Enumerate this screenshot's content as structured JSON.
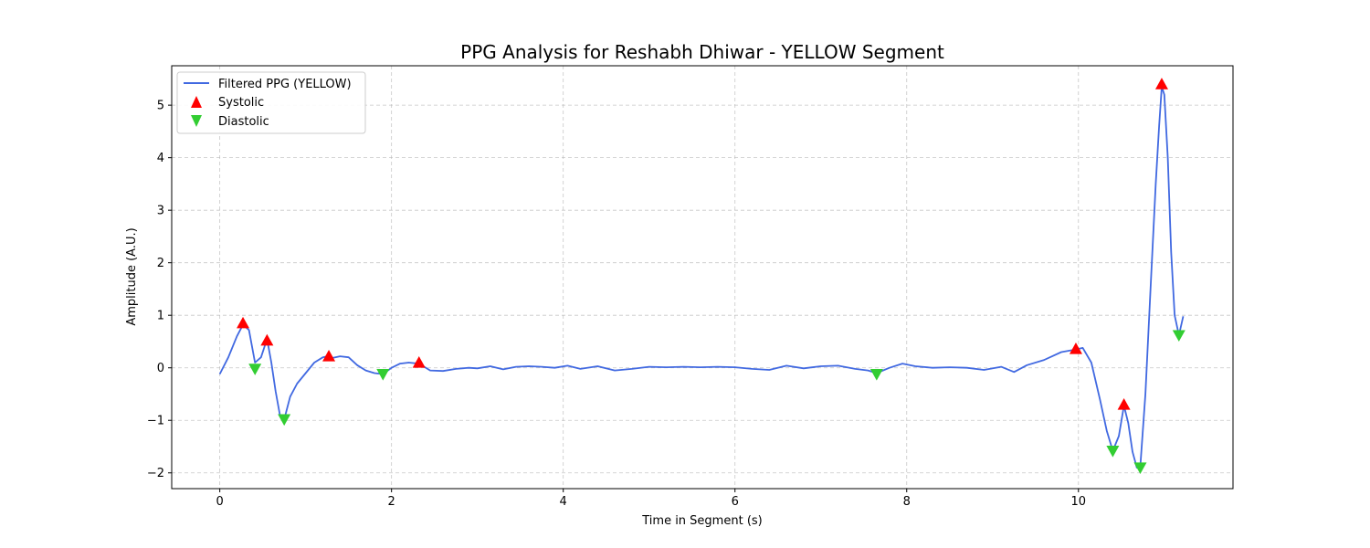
{
  "chart_data": {
    "type": "line",
    "title": "PPG Analysis for Reshabh Dhiwar - YELLOW Segment",
    "xlabel": "Time in Segment (s)",
    "ylabel": "Amplitude (A.U.)",
    "xlim": [
      -0.56,
      11.8
    ],
    "ylim": [
      -2.3,
      5.75
    ],
    "xticks": [
      0,
      2,
      4,
      6,
      8,
      10
    ],
    "yticks": [
      -2,
      -1,
      0,
      1,
      2,
      3,
      4,
      5
    ],
    "grid": true,
    "legend_position": "top-left",
    "colors": {
      "line": "#4169e1",
      "systolic": "#ff0000",
      "diastolic": "#32cd32"
    },
    "series": [
      {
        "name": "Filtered PPG (YELLOW)",
        "kind": "line",
        "x": [
          0,
          0.1,
          0.2,
          0.27,
          0.34,
          0.41,
          0.48,
          0.55,
          0.6,
          0.65,
          0.7,
          0.75,
          0.82,
          0.9,
          1.0,
          1.1,
          1.2,
          1.25,
          1.32,
          1.4,
          1.5,
          1.6,
          1.7,
          1.8,
          1.9,
          2.0,
          2.1,
          2.2,
          2.32,
          2.45,
          2.6,
          2.75,
          2.9,
          3.0,
          3.15,
          3.3,
          3.45,
          3.6,
          3.75,
          3.9,
          4.05,
          4.2,
          4.4,
          4.6,
          4.8,
          5.0,
          5.2,
          5.4,
          5.6,
          5.8,
          6.0,
          6.2,
          6.4,
          6.6,
          6.8,
          7.0,
          7.2,
          7.4,
          7.55,
          7.65,
          7.8,
          7.95,
          8.1,
          8.3,
          8.5,
          8.7,
          8.9,
          9.1,
          9.25,
          9.4,
          9.6,
          9.8,
          9.97,
          10.05,
          10.15,
          10.25,
          10.33,
          10.4,
          10.47,
          10.53,
          10.58,
          10.63,
          10.68,
          10.72,
          10.78,
          10.84,
          10.9,
          10.94,
          10.97,
          11.0,
          11.04,
          11.08,
          11.12,
          11.17,
          11.22
        ],
        "y": [
          -0.12,
          0.2,
          0.6,
          0.82,
          0.72,
          0.1,
          0.2,
          0.55,
          0.1,
          -0.45,
          -0.9,
          -0.98,
          -0.55,
          -0.3,
          -0.1,
          0.1,
          0.2,
          0.22,
          0.19,
          0.22,
          0.2,
          0.05,
          -0.05,
          -0.1,
          -0.12,
          0.0,
          0.08,
          0.1,
          0.08,
          -0.05,
          -0.06,
          -0.02,
          0.0,
          -0.01,
          0.03,
          -0.03,
          0.02,
          0.03,
          0.02,
          0.0,
          0.04,
          -0.02,
          0.03,
          -0.05,
          -0.02,
          0.02,
          0.01,
          0.02,
          0.01,
          0.02,
          0.01,
          -0.02,
          -0.04,
          0.04,
          -0.01,
          0.03,
          0.04,
          -0.02,
          -0.05,
          -0.1,
          0.0,
          0.08,
          0.03,
          0.0,
          0.01,
          0.0,
          -0.04,
          0.02,
          -0.08,
          0.05,
          0.15,
          0.3,
          0.35,
          0.38,
          0.1,
          -0.6,
          -1.2,
          -1.58,
          -1.3,
          -0.72,
          -1.05,
          -1.6,
          -1.9,
          -1.88,
          -0.5,
          1.5,
          3.5,
          4.6,
          5.35,
          5.2,
          4.0,
          2.2,
          1.0,
          0.62,
          0.98
        ]
      },
      {
        "name": "Systolic",
        "kind": "marker-up",
        "x": [
          0.27,
          0.55,
          1.27,
          2.32,
          9.97,
          10.53,
          10.97
        ],
        "y": [
          0.85,
          0.52,
          0.22,
          0.1,
          0.36,
          -0.7,
          5.4
        ]
      },
      {
        "name": "Diastolic",
        "kind": "marker-down",
        "x": [
          0.41,
          0.75,
          1.9,
          7.65,
          10.4,
          10.72,
          11.17
        ],
        "y": [
          -0.02,
          -0.98,
          -0.12,
          -0.12,
          -1.58,
          -1.9,
          0.62
        ]
      }
    ]
  }
}
